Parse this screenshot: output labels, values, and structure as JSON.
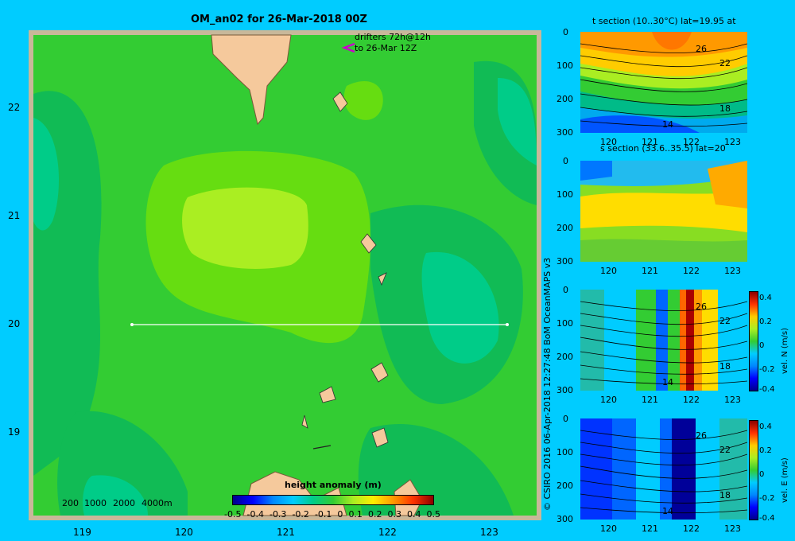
{
  "map": {
    "title": "OM_an02 for 26-Mar-2018 00Z",
    "drifters_line1": "drifters 72h@12h",
    "drifters_line2": "to 26-Mar 12Z",
    "lon_ticks": [
      "119",
      "120",
      "121",
      "122",
      "123"
    ],
    "lat_ticks": [
      "22",
      "21",
      "20",
      "19"
    ],
    "depth_legend": [
      "200",
      "1000",
      "2000",
      "4000m"
    ],
    "section_latitude": 20,
    "section_lon_range": [
      119.5,
      123.2
    ]
  },
  "colorbar": {
    "label": "height anomaly (m)",
    "tick_labels": [
      "-0.5",
      "-0.4",
      "-0.3",
      "-0.2",
      "-0.1",
      "0",
      "0.1",
      "0.2",
      "0.3",
      "0.4",
      "0.5"
    ],
    "range": [
      -0.5,
      0.5
    ]
  },
  "credit": "© CSIRO 2016   06-Apr-2018 12:27:48 BoM OceanMAPS v3",
  "panels": [
    {
      "title": "t section (10..30°C) lat=19.95 at",
      "contour_labels": [
        "26",
        "22",
        "18",
        "14"
      ],
      "y_ticks": [
        "0",
        "100",
        "200",
        "300"
      ],
      "x_ticks": [
        "120",
        "121",
        "122",
        "123"
      ],
      "colorbar": null
    },
    {
      "title": "s section (33.6..35.5) lat=20",
      "contour_labels": [],
      "y_ticks": [
        "0",
        "100",
        "200",
        "300"
      ],
      "x_ticks": [
        "120",
        "121",
        "122",
        "123"
      ],
      "colorbar": null
    },
    {
      "title": "",
      "contour_labels": [
        "26",
        "22",
        "18",
        "14"
      ],
      "y_ticks": [
        "0",
        "100",
        "200",
        "300"
      ],
      "x_ticks": [
        "120",
        "121",
        "122",
        "123"
      ],
      "colorbar": {
        "label": "vel. N (m/s)",
        "ticks": [
          "0.4",
          "0.2",
          "0",
          "-0.2",
          "-0.4"
        ]
      }
    },
    {
      "title": "",
      "contour_labels": [
        "26",
        "22",
        "18",
        "14"
      ],
      "y_ticks": [
        "0",
        "100",
        "200",
        "300"
      ],
      "x_ticks": [
        "120",
        "121",
        "122",
        "123"
      ],
      "colorbar": {
        "label": "vel. E (m/s)",
        "ticks": [
          "0.4",
          "0.2",
          "0",
          "-0.2",
          "-0.4"
        ]
      }
    }
  ],
  "colors": {
    "background": "#00ccff",
    "land": "#f5c99c",
    "frame": "#c8b89a"
  }
}
